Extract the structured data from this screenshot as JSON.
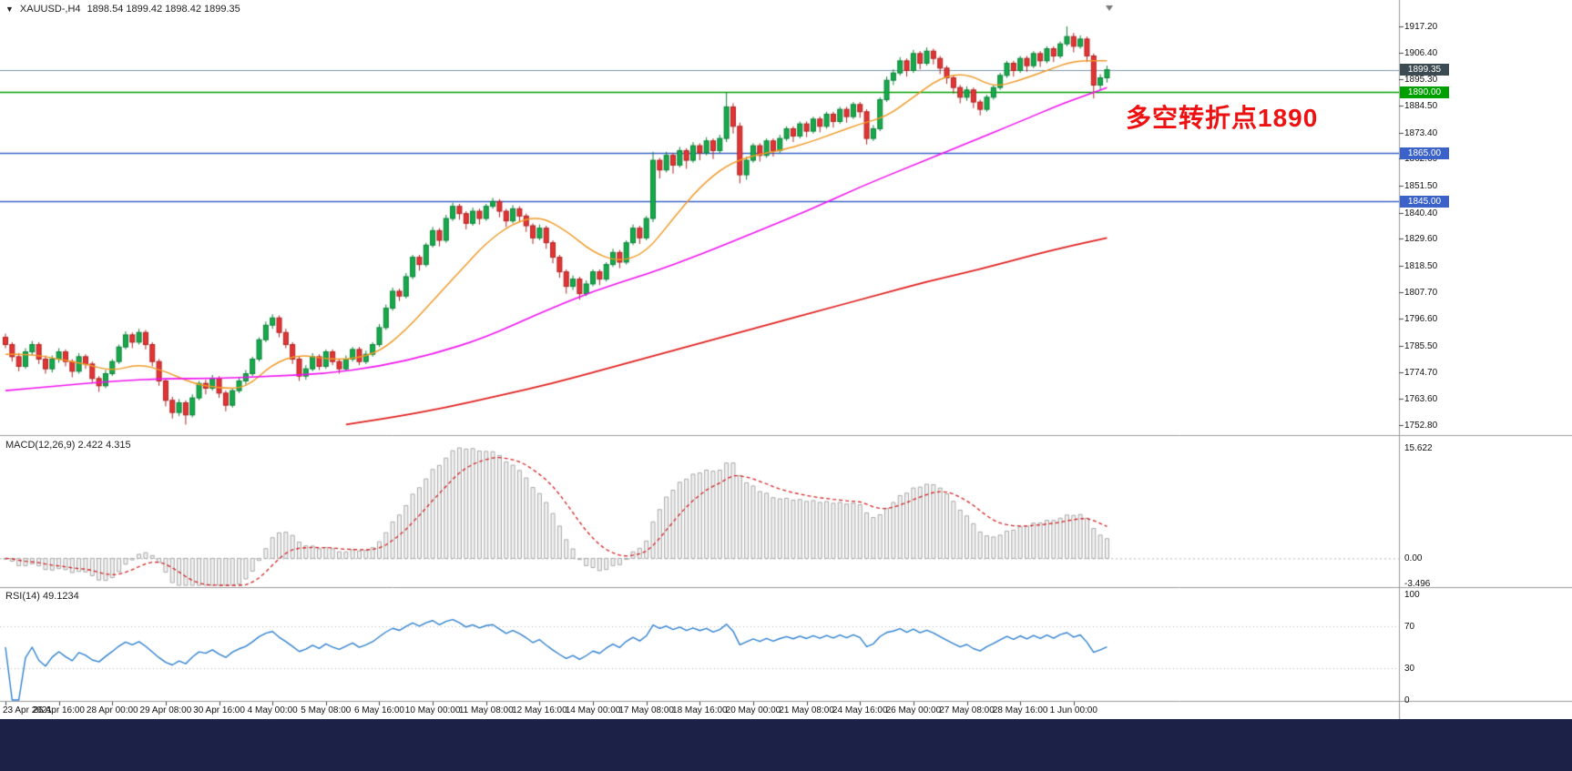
{
  "window": {
    "marker": "▼",
    "symbol": "XAUUSD-,H4",
    "ohlc_text": "1898.54 1899.42 1898.42 1899.35"
  },
  "annotation": {
    "text": "多空转折点1890",
    "color": "#ee1111"
  },
  "colors": {
    "up_fill": "#17a94b",
    "up_stroke": "#0c8238",
    "down_fill": "#e23434",
    "down_stroke": "#b02323",
    "ma_fast": "#f09a28",
    "ma_mid": "#f013f0",
    "ma_slow": "#e02020",
    "macd_bar_fill": "#f1f1f1",
    "macd_bar_stroke": "#a8a8a8",
    "macd_signal": "#d42525",
    "rsi_line": "#2f80d0",
    "hline_blue": "#3a62c8",
    "hline_green": "#00a000",
    "price_line": "#7d97aa",
    "badge_dark": "#3c4a52",
    "separator": "#9a9a9a",
    "taskbar": "#1b2147"
  },
  "price_axis": {
    "labels": [
      "1917.20",
      "1906.40",
      "1895.30",
      "1884.50",
      "1873.40",
      "1862.60",
      "1851.50",
      "1840.40",
      "1829.60",
      "1818.50",
      "1807.70",
      "1796.60",
      "1785.50",
      "1774.70",
      "1763.60",
      "1752.80"
    ]
  },
  "price_badges": [
    {
      "value": 1899.35,
      "label": "1899.35",
      "style": "current"
    },
    {
      "value": 1890.0,
      "label": "1890.00",
      "style": "green"
    },
    {
      "value": 1865.0,
      "label": "1865.00",
      "style": "blue"
    },
    {
      "value": 1845.0,
      "label": "1845.00",
      "style": "blue"
    }
  ],
  "date_axis": {
    "bars_per_label": 8,
    "labels": [
      "23 Apr 2021",
      "26 Apr 16:00",
      "28 Apr 00:00",
      "29 Apr 08:00",
      "30 Apr 16:00",
      "4 May 00:00",
      "5 May 08:00",
      "6 May 16:00",
      "10 May 00:00",
      "11 May 08:00",
      "12 May 16:00",
      "14 May 00:00",
      "17 May 08:00",
      "18 May 16:00",
      "20 May 00:00",
      "21 May 08:00",
      "24 May 16:00",
      "26 May 00:00",
      "27 May 08:00",
      "28 May 16:00",
      "1 Jun 00:00"
    ]
  },
  "macd_panel": {
    "name": "MACD(12,26,9)",
    "values": "2.422 4.315",
    "axis_labels": [
      "15.622",
      "0.00",
      "-3.496"
    ],
    "max": 15.622,
    "min": -3.496,
    "params": [
      12,
      26,
      9
    ]
  },
  "rsi_panel": {
    "name": "RSI(14)",
    "value": "49.1234",
    "axis_labels": [
      "100",
      "70",
      "30",
      "0"
    ],
    "levels": [
      70,
      30
    ],
    "period": 14
  },
  "chart_data": {
    "type": "candlestick",
    "symbol": "XAUUSD",
    "timeframe": "H4",
    "title": "XAUUSD-,H4 1898.54 1899.42 1898.42 1899.35",
    "y_min": 1752.8,
    "y_max": 1917.2,
    "hline_values": [
      1899.35,
      1890.0,
      1865.0,
      1845.0
    ],
    "candles": [
      [
        1789,
        1790.5,
        1784.5,
        1786
      ],
      [
        1786,
        1787,
        1779,
        1781
      ],
      [
        1781,
        1782.5,
        1775,
        1777
      ],
      [
        1777,
        1784.5,
        1776,
        1783
      ],
      [
        1783,
        1787.5,
        1781.5,
        1786
      ],
      [
        1786,
        1787,
        1778,
        1780
      ],
      [
        1780,
        1781.5,
        1774,
        1776
      ],
      [
        1776,
        1781.5,
        1774.5,
        1780
      ],
      [
        1780,
        1784.5,
        1778.5,
        1783
      ],
      [
        1783,
        1784,
        1777,
        1779
      ],
      [
        1779,
        1780,
        1772.5,
        1775
      ],
      [
        1775,
        1782.5,
        1774,
        1781
      ],
      [
        1781,
        1782,
        1776,
        1778
      ],
      [
        1778,
        1779,
        1770,
        1772
      ],
      [
        1772,
        1773,
        1766.5,
        1769
      ],
      [
        1769,
        1775.5,
        1768,
        1774
      ],
      [
        1774,
        1780,
        1773,
        1779
      ],
      [
        1779,
        1786,
        1778,
        1785
      ],
      [
        1785,
        1791.5,
        1784,
        1790
      ],
      [
        1790,
        1791,
        1784.5,
        1787
      ],
      [
        1787,
        1792.5,
        1786,
        1791
      ],
      [
        1791,
        1792,
        1784,
        1786
      ],
      [
        1786,
        1787,
        1777,
        1779
      ],
      [
        1779,
        1780,
        1769,
        1771
      ],
      [
        1771,
        1772,
        1760.5,
        1763
      ],
      [
        1763,
        1764.5,
        1755.5,
        1758
      ],
      [
        1758,
        1763.5,
        1756.5,
        1762
      ],
      [
        1762,
        1763,
        1753,
        1757
      ],
      [
        1757,
        1765.5,
        1756,
        1764
      ],
      [
        1764,
        1771,
        1763,
        1770
      ],
      [
        1770,
        1771.5,
        1765.5,
        1768
      ],
      [
        1768,
        1773.5,
        1767,
        1772
      ],
      [
        1772,
        1773,
        1764,
        1766
      ],
      [
        1766,
        1767,
        1758.5,
        1761
      ],
      [
        1761,
        1768,
        1760,
        1767
      ],
      [
        1767,
        1772.5,
        1766,
        1771
      ],
      [
        1771,
        1775.5,
        1769.5,
        1774
      ],
      [
        1774,
        1781,
        1773,
        1780
      ],
      [
        1780,
        1789,
        1779,
        1788
      ],
      [
        1788,
        1795.5,
        1787,
        1794
      ],
      [
        1794,
        1798.5,
        1792.5,
        1797
      ],
      [
        1797,
        1798,
        1789,
        1791
      ],
      [
        1791,
        1792.5,
        1784.5,
        1786
      ],
      [
        1786,
        1787,
        1778,
        1780
      ],
      [
        1780,
        1781,
        1771,
        1773
      ],
      [
        1773,
        1777.5,
        1771.5,
        1776
      ],
      [
        1776,
        1782.5,
        1775,
        1781
      ],
      [
        1781,
        1782,
        1775.5,
        1777
      ],
      [
        1777,
        1784,
        1776,
        1783
      ],
      [
        1783,
        1784,
        1777.5,
        1779
      ],
      [
        1779,
        1780,
        1774,
        1776
      ],
      [
        1776,
        1781.5,
        1775,
        1780
      ],
      [
        1780,
        1785,
        1779,
        1784
      ],
      [
        1784,
        1785,
        1777.5,
        1779
      ],
      [
        1779,
        1783.5,
        1778,
        1782
      ],
      [
        1782,
        1787,
        1781,
        1786
      ],
      [
        1786,
        1794.5,
        1785,
        1793
      ],
      [
        1793,
        1802.5,
        1792,
        1801
      ],
      [
        1801,
        1809.5,
        1800,
        1808
      ],
      [
        1808,
        1809,
        1804,
        1806
      ],
      [
        1806,
        1815.5,
        1805,
        1814
      ],
      [
        1814,
        1823,
        1813,
        1822
      ],
      [
        1822,
        1823,
        1816.5,
        1819
      ],
      [
        1819,
        1828,
        1818,
        1827
      ],
      [
        1827,
        1834.5,
        1826,
        1833
      ],
      [
        1833,
        1834,
        1826.5,
        1829
      ],
      [
        1829,
        1839.5,
        1828,
        1838
      ],
      [
        1838,
        1844.5,
        1837,
        1843
      ],
      [
        1843,
        1844,
        1837.5,
        1840
      ],
      [
        1840,
        1841,
        1833.5,
        1836
      ],
      [
        1836,
        1842.5,
        1835,
        1841
      ],
      [
        1841,
        1842,
        1835.5,
        1838
      ],
      [
        1838,
        1844,
        1837,
        1843
      ],
      [
        1843,
        1846.5,
        1842,
        1845
      ],
      [
        1845,
        1846,
        1838.5,
        1841
      ],
      [
        1841,
        1842,
        1834.5,
        1837
      ],
      [
        1837,
        1843.5,
        1836,
        1842
      ],
      [
        1842,
        1843,
        1836.5,
        1839
      ],
      [
        1839,
        1840,
        1832.5,
        1835
      ],
      [
        1835,
        1836,
        1827.5,
        1830
      ],
      [
        1830,
        1835.5,
        1829,
        1834
      ],
      [
        1834,
        1835,
        1825.5,
        1828
      ],
      [
        1828,
        1829,
        1819.5,
        1822
      ],
      [
        1822,
        1823,
        1813.5,
        1816
      ],
      [
        1816,
        1817,
        1807,
        1810
      ],
      [
        1810,
        1814.5,
        1808.5,
        1813
      ],
      [
        1813,
        1814,
        1804.5,
        1807
      ],
      [
        1807,
        1812.5,
        1806,
        1811
      ],
      [
        1811,
        1817,
        1810,
        1816
      ],
      [
        1816,
        1817,
        1810.5,
        1813
      ],
      [
        1813,
        1820,
        1812,
        1819
      ],
      [
        1819,
        1825.5,
        1818,
        1824
      ],
      [
        1824,
        1825,
        1817.5,
        1820
      ],
      [
        1820,
        1829,
        1819,
        1828
      ],
      [
        1828,
        1835.5,
        1827,
        1834
      ],
      [
        1834,
        1835,
        1827.5,
        1830
      ],
      [
        1830,
        1839,
        1829,
        1838
      ],
      [
        1838,
        1865.5,
        1836.5,
        1862
      ],
      [
        1862,
        1863,
        1854.5,
        1858
      ],
      [
        1858,
        1865.5,
        1857,
        1864
      ],
      [
        1864,
        1865,
        1856.5,
        1860
      ],
      [
        1860,
        1867.5,
        1859,
        1866
      ],
      [
        1866,
        1867,
        1858.5,
        1862
      ],
      [
        1862,
        1869.5,
        1861,
        1868
      ],
      [
        1868,
        1869,
        1862,
        1865
      ],
      [
        1865,
        1871.5,
        1864,
        1870
      ],
      [
        1870,
        1871,
        1862.5,
        1866
      ],
      [
        1866,
        1872.5,
        1865,
        1871
      ],
      [
        1871,
        1890,
        1869.5,
        1884
      ],
      [
        1884,
        1885.5,
        1873,
        1876
      ],
      [
        1876,
        1877.5,
        1852.5,
        1856
      ],
      [
        1856,
        1863.5,
        1854,
        1862
      ],
      [
        1862,
        1869,
        1861,
        1868
      ],
      [
        1868,
        1869,
        1861.5,
        1864
      ],
      [
        1864,
        1871,
        1863,
        1870
      ],
      [
        1870,
        1871,
        1863.5,
        1866
      ],
      [
        1866,
        1872.5,
        1865,
        1871
      ],
      [
        1871,
        1876,
        1870,
        1875
      ],
      [
        1875,
        1876,
        1869.5,
        1872
      ],
      [
        1872,
        1878,
        1871,
        1877
      ],
      [
        1877,
        1878,
        1871.5,
        1874
      ],
      [
        1874,
        1880,
        1873,
        1879
      ],
      [
        1879,
        1880,
        1873.5,
        1876
      ],
      [
        1876,
        1882,
        1875,
        1881
      ],
      [
        1881,
        1882,
        1875.5,
        1878
      ],
      [
        1878,
        1884,
        1877,
        1883
      ],
      [
        1883,
        1884,
        1877.5,
        1880
      ],
      [
        1880,
        1886,
        1879,
        1885
      ],
      [
        1885,
        1886,
        1879.5,
        1882
      ],
      [
        1882,
        1883,
        1868.5,
        1871
      ],
      [
        1871,
        1876.5,
        1870,
        1875
      ],
      [
        1875,
        1888,
        1874,
        1887
      ],
      [
        1887,
        1896.5,
        1886,
        1895
      ],
      [
        1895,
        1899.5,
        1893,
        1898
      ],
      [
        1898,
        1904.5,
        1897,
        1903
      ],
      [
        1903,
        1904,
        1896.5,
        1899
      ],
      [
        1899,
        1907.5,
        1898,
        1906
      ],
      [
        1906,
        1907,
        1899.5,
        1902
      ],
      [
        1902,
        1908.5,
        1901,
        1907
      ],
      [
        1907,
        1908,
        1901.5,
        1904
      ],
      [
        1904,
        1905,
        1897.5,
        1900
      ],
      [
        1900,
        1901,
        1893.5,
        1896
      ],
      [
        1896,
        1897,
        1889.5,
        1892
      ],
      [
        1892,
        1893,
        1885.5,
        1888
      ],
      [
        1888,
        1892.5,
        1886.5,
        1891
      ],
      [
        1891,
        1892,
        1883.5,
        1886
      ],
      [
        1886,
        1887,
        1880.5,
        1883
      ],
      [
        1883,
        1889,
        1882,
        1888
      ],
      [
        1888,
        1893,
        1887,
        1892
      ],
      [
        1892,
        1898,
        1891,
        1897
      ],
      [
        1897,
        1903,
        1896,
        1902
      ],
      [
        1902,
        1903,
        1896.5,
        1899
      ],
      [
        1899,
        1905,
        1898,
        1904
      ],
      [
        1904,
        1905,
        1898.5,
        1901
      ],
      [
        1901,
        1907,
        1900,
        1906
      ],
      [
        1906,
        1907,
        1900.5,
        1903
      ],
      [
        1903,
        1909,
        1902,
        1908
      ],
      [
        1908,
        1909,
        1902.5,
        1905
      ],
      [
        1905,
        1911,
        1904,
        1910
      ],
      [
        1910,
        1917.2,
        1909,
        1913
      ],
      [
        1913,
        1914.5,
        1906.5,
        1909
      ],
      [
        1909,
        1913.5,
        1908,
        1912
      ],
      [
        1912,
        1913,
        1902.5,
        1905
      ],
      [
        1905,
        1906,
        1887.5,
        1893
      ],
      [
        1893,
        1897.5,
        1891,
        1896
      ],
      [
        1896,
        1901,
        1894,
        1899.35
      ]
    ],
    "overlays": [
      {
        "name": "ma-fast",
        "color_key": "ma_fast",
        "width": 1.5,
        "points": [
          [
            0,
            1782
          ],
          [
            4,
            1782
          ],
          [
            8,
            1780
          ],
          [
            12,
            1778
          ],
          [
            16,
            1775
          ],
          [
            20,
            1778
          ],
          [
            24,
            1775
          ],
          [
            28,
            1770
          ],
          [
            32,
            1768
          ],
          [
            36,
            1768
          ],
          [
            40,
            1778
          ],
          [
            44,
            1782
          ],
          [
            48,
            1780
          ],
          [
            52,
            1780
          ],
          [
            56,
            1783
          ],
          [
            60,
            1792
          ],
          [
            64,
            1804
          ],
          [
            68,
            1816
          ],
          [
            72,
            1828
          ],
          [
            76,
            1836
          ],
          [
            80,
            1839
          ],
          [
            84,
            1833
          ],
          [
            88,
            1824
          ],
          [
            92,
            1820
          ],
          [
            96,
            1824
          ],
          [
            100,
            1838
          ],
          [
            104,
            1851
          ],
          [
            108,
            1860
          ],
          [
            112,
            1864
          ],
          [
            116,
            1866
          ],
          [
            120,
            1869
          ],
          [
            124,
            1873
          ],
          [
            128,
            1877
          ],
          [
            132,
            1880
          ],
          [
            136,
            1888
          ],
          [
            140,
            1896
          ],
          [
            144,
            1898
          ],
          [
            148,
            1892
          ],
          [
            152,
            1895
          ],
          [
            156,
            1899
          ],
          [
            160,
            1903
          ],
          [
            165,
            1903
          ]
        ]
      },
      {
        "name": "ma-mid",
        "color_key": "ma_mid",
        "width": 1.6,
        "points": [
          [
            0,
            1767
          ],
          [
            8,
            1769
          ],
          [
            16,
            1771
          ],
          [
            24,
            1772
          ],
          [
            32,
            1772
          ],
          [
            40,
            1773
          ],
          [
            48,
            1774
          ],
          [
            56,
            1777
          ],
          [
            64,
            1782
          ],
          [
            72,
            1789
          ],
          [
            80,
            1799
          ],
          [
            88,
            1808
          ],
          [
            96,
            1815
          ],
          [
            104,
            1823
          ],
          [
            112,
            1832
          ],
          [
            120,
            1841
          ],
          [
            128,
            1851
          ],
          [
            136,
            1860
          ],
          [
            144,
            1869
          ],
          [
            152,
            1878
          ],
          [
            158,
            1885
          ],
          [
            162,
            1889
          ],
          [
            165,
            1892
          ]
        ]
      },
      {
        "name": "ma-slow",
        "color_key": "ma_slow",
        "width": 1.8,
        "points": [
          [
            51,
            1753
          ],
          [
            58,
            1756
          ],
          [
            66,
            1760
          ],
          [
            74,
            1765
          ],
          [
            82,
            1770
          ],
          [
            90,
            1776
          ],
          [
            98,
            1782
          ],
          [
            106,
            1788
          ],
          [
            114,
            1794
          ],
          [
            122,
            1800
          ],
          [
            130,
            1806
          ],
          [
            138,
            1812
          ],
          [
            146,
            1817
          ],
          [
            154,
            1823
          ],
          [
            160,
            1827
          ],
          [
            165,
            1830
          ]
        ]
      }
    ]
  }
}
